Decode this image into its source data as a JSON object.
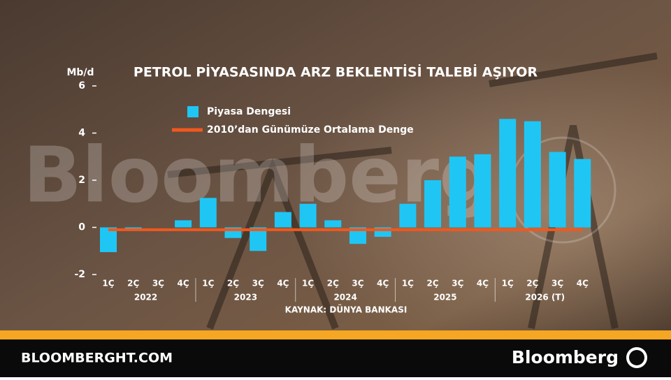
{
  "chart_data": {
    "type": "bar",
    "title": "PETROL PİYASASINDA ARZ BEKLENTİSİ TALEBİ AŞIYOR",
    "y_label": "Mb/d",
    "source": "KAYNAK: DÜNYA BANKASI",
    "categories": [
      "1Ç",
      "2Ç",
      "3Ç",
      "4Ç",
      "1Ç",
      "2Ç",
      "3Ç",
      "4Ç",
      "1Ç",
      "2Ç",
      "3Ç",
      "4Ç",
      "1Ç",
      "2Ç",
      "3Ç",
      "4Ç",
      "1Ç",
      "2Ç",
      "3Ç",
      "4Ç"
    ],
    "x_groups": [
      "2022",
      "2023",
      "2024",
      "2025",
      "2026 (T)"
    ],
    "series": [
      {
        "name": "Piyasa Dengesi",
        "type": "bar",
        "color": "#1fc6f4",
        "values": [
          -1.05,
          -0.05,
          0,
          0.3,
          1.25,
          -0.45,
          -1.0,
          0.65,
          1.0,
          0.3,
          -0.7,
          -0.4,
          1.0,
          2.0,
          3.0,
          3.1,
          4.6,
          4.5,
          3.2,
          2.9
        ]
      },
      {
        "name": "2010’dan Günümüze Ortalama Denge",
        "type": "line",
        "color": "#f0581e",
        "values": [
          -0.1,
          -0.1,
          -0.1,
          -0.1,
          -0.1,
          -0.1,
          -0.1,
          -0.1,
          -0.1,
          -0.1,
          -0.1,
          -0.1,
          -0.1,
          -0.1,
          -0.1,
          -0.1,
          -0.1,
          -0.1,
          -0.1,
          -0.1
        ]
      }
    ],
    "ylim": [
      -2,
      6
    ],
    "yticks": [
      -2,
      0,
      2,
      4,
      6
    ]
  },
  "watermark": "Bloomberg",
  "footer": {
    "site": "BLOOMBERGHT.COM",
    "brand": "Bloomberg"
  }
}
